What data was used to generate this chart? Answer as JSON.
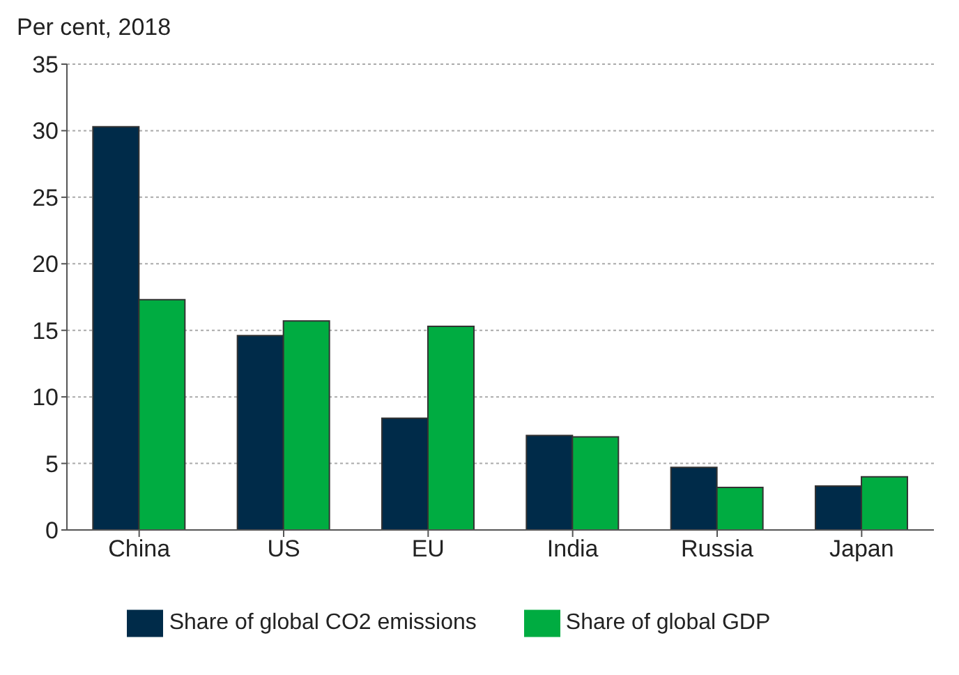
{
  "chart_data": {
    "type": "bar",
    "ylabel": "Per cent, 2018",
    "categories": [
      "China",
      "US",
      "EU",
      "India",
      "Russia",
      "Japan"
    ],
    "series": [
      {
        "name": "Share of global CO2 emissions",
        "color": "#002b49",
        "values": [
          30.3,
          14.6,
          8.4,
          7.1,
          4.7,
          3.3
        ]
      },
      {
        "name": "Share of global GDP",
        "color": "#00ac41",
        "values": [
          17.3,
          15.7,
          15.3,
          7.0,
          3.2,
          4.0
        ]
      }
    ],
    "ylim": [
      0,
      35
    ],
    "yticks": [
      0,
      5,
      10,
      15,
      20,
      25,
      30,
      35
    ],
    "grid": "y",
    "legend": "bottom"
  }
}
